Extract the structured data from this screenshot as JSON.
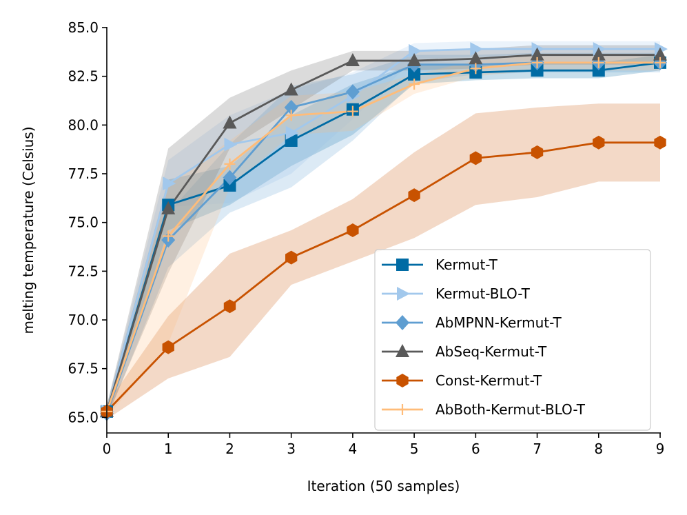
{
  "chart_data": {
    "type": "line",
    "title": "",
    "xlabel": "Iteration (50 samples)",
    "ylabel": "melting temperature (Celsius)",
    "x": [
      0,
      1,
      2,
      3,
      4,
      5,
      6,
      7,
      8,
      9
    ],
    "xlim": [
      0,
      9
    ],
    "ylim": [
      64.2,
      85.0
    ],
    "xticks": [
      "0",
      "1",
      "2",
      "3",
      "4",
      "5",
      "6",
      "7",
      "8",
      "9"
    ],
    "yticks": [
      "65.0",
      "67.5",
      "70.0",
      "72.5",
      "75.0",
      "77.5",
      "80.0",
      "82.5",
      "85.0"
    ],
    "legend_position": "lower-right",
    "series": [
      {
        "name": "Kermut-T",
        "color": "#006ba4",
        "marker": "square",
        "values": [
          65.3,
          75.9,
          76.9,
          79.2,
          80.8,
          82.6,
          82.7,
          82.8,
          82.8,
          83.2
        ],
        "lower": [
          65.0,
          74.6,
          75.9,
          77.9,
          79.5,
          82.1,
          82.3,
          82.4,
          82.4,
          82.8
        ],
        "upper": [
          65.6,
          77.2,
          77.9,
          80.5,
          82.1,
          83.1,
          83.1,
          83.2,
          83.2,
          83.6
        ]
      },
      {
        "name": "Kermut-BLO-T",
        "color": "#a2c8ec",
        "marker": "triangle-right",
        "values": [
          65.3,
          77.0,
          79.0,
          79.6,
          81.5,
          83.8,
          83.9,
          83.9,
          83.9,
          83.9
        ],
        "lower": [
          65.0,
          75.8,
          76.0,
          77.5,
          80.3,
          83.4,
          83.5,
          83.5,
          83.5,
          83.5
        ],
        "upper": [
          65.6,
          78.2,
          80.5,
          81.8,
          82.7,
          84.2,
          84.3,
          84.3,
          84.3,
          84.3
        ]
      },
      {
        "name": "AbMPNN-Kermut-T",
        "color": "#5f9ed1",
        "marker": "diamond",
        "values": [
          65.2,
          74.1,
          77.3,
          80.9,
          81.7,
          83.1,
          83.1,
          83.2,
          83.2,
          83.2
        ],
        "lower": [
          64.9,
          72.7,
          75.5,
          76.8,
          79.2,
          82.2,
          82.6,
          82.7,
          82.7,
          82.7
        ],
        "upper": [
          65.5,
          75.5,
          79.0,
          82.0,
          82.6,
          83.6,
          83.6,
          83.7,
          83.7,
          83.7
        ]
      },
      {
        "name": "AbSeq-Kermut-T",
        "color": "#595959",
        "marker": "triangle-up",
        "values": [
          65.3,
          75.7,
          80.1,
          81.8,
          83.3,
          83.3,
          83.4,
          83.6,
          83.6,
          83.6
        ],
        "lower": [
          65.0,
          72.4,
          78.8,
          80.8,
          82.8,
          82.8,
          82.9,
          83.1,
          83.1,
          83.1
        ],
        "upper": [
          65.6,
          78.8,
          81.4,
          82.8,
          83.8,
          83.8,
          83.9,
          84.1,
          84.1,
          84.1
        ]
      },
      {
        "name": "Const-Kermut-T",
        "color": "#c85200",
        "marker": "hexagon",
        "values": [
          65.3,
          68.6,
          70.7,
          73.2,
          74.6,
          76.4,
          78.3,
          78.6,
          79.1,
          79.1
        ],
        "lower": [
          64.9,
          67.0,
          68.1,
          71.8,
          73.0,
          74.2,
          75.9,
          76.3,
          77.1,
          77.1
        ],
        "upper": [
          65.7,
          70.2,
          73.4,
          74.6,
          76.2,
          78.6,
          80.6,
          80.9,
          81.1,
          81.1
        ]
      },
      {
        "name": "AbBoth-Kermut-BLO-T",
        "color": "#ffbc79",
        "marker": "plus",
        "values": [
          65.3,
          74.3,
          78.0,
          80.5,
          80.7,
          82.1,
          82.9,
          83.2,
          83.2,
          83.2
        ],
        "lower": [
          65.0,
          68.8,
          76.8,
          79.5,
          79.7,
          81.6,
          82.5,
          82.8,
          82.8,
          82.8
        ],
        "upper": [
          65.6,
          76.9,
          79.2,
          81.5,
          81.7,
          82.6,
          83.3,
          83.6,
          83.6,
          83.6
        ]
      }
    ]
  }
}
